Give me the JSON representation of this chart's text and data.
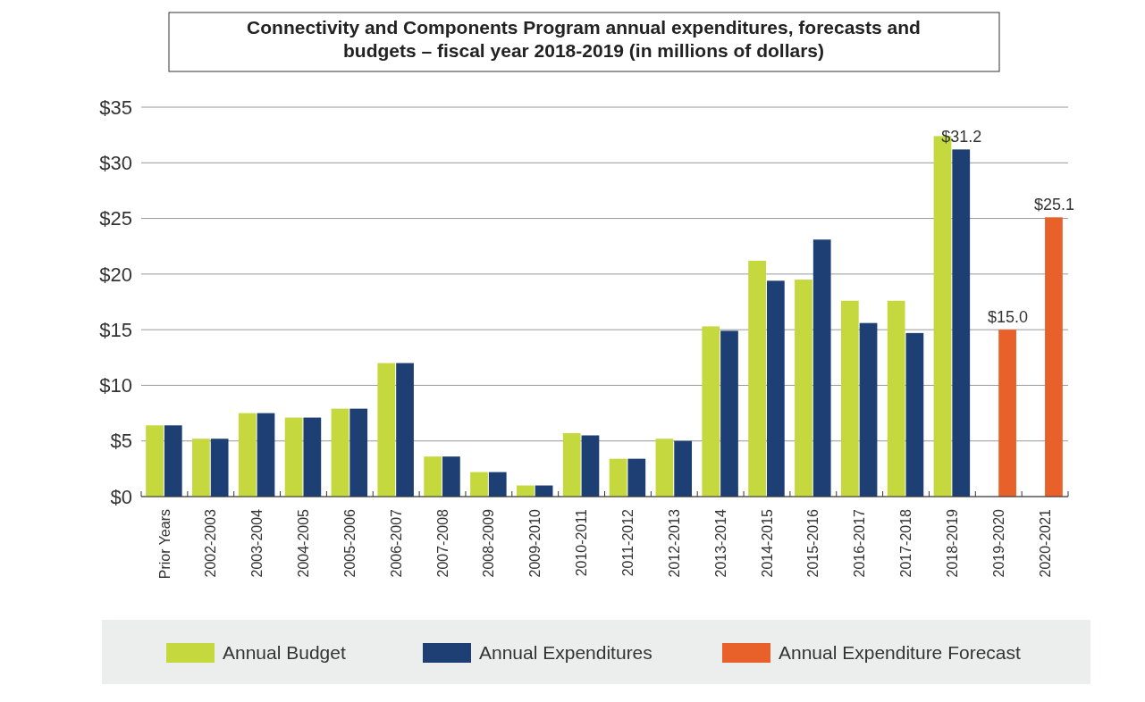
{
  "chart_data": {
    "type": "bar",
    "title": "Connectivity and Components Program annual expenditures, forecasts and budgets – fiscal year 2018-2019 (in millions of dollars)",
    "categories": [
      "Prior Years",
      "2002-2003",
      "2003-2004",
      "2004-2005",
      "2005-2006",
      "2006-2007",
      "2007-2008",
      "2008-2009",
      "2009-2010",
      "2010-2011",
      "2011-2012",
      "2012-2013",
      "2013-2014",
      "2014-2015",
      "2015-2016",
      "2016-2017",
      "2017-2018",
      "2018-2019",
      "2019-2020",
      "2020-2021"
    ],
    "series": [
      {
        "name": "Annual Budget",
        "color": "#c5d83e",
        "values": [
          6.4,
          5.2,
          7.5,
          7.1,
          7.9,
          12.0,
          3.6,
          2.2,
          1.0,
          5.7,
          3.4,
          5.2,
          15.3,
          21.2,
          19.5,
          17.6,
          17.6,
          32.4,
          null,
          null
        ]
      },
      {
        "name": "Annual Expenditures",
        "color": "#1e3f73",
        "values": [
          6.4,
          5.2,
          7.5,
          7.1,
          7.9,
          12.0,
          3.6,
          2.2,
          1.0,
          5.5,
          3.4,
          5.0,
          14.9,
          19.4,
          23.1,
          15.6,
          14.7,
          31.2,
          null,
          null
        ],
        "value_labels": [
          null,
          null,
          null,
          null,
          null,
          null,
          null,
          null,
          null,
          null,
          null,
          null,
          null,
          null,
          null,
          null,
          null,
          "$31.2",
          null,
          null
        ]
      },
      {
        "name": "Annual Expenditure Forecast",
        "color": "#e8602a",
        "values": [
          null,
          null,
          null,
          null,
          null,
          null,
          null,
          null,
          null,
          null,
          null,
          null,
          null,
          null,
          null,
          null,
          null,
          null,
          15.0,
          25.1
        ],
        "value_labels": [
          null,
          null,
          null,
          null,
          null,
          null,
          null,
          null,
          null,
          null,
          null,
          null,
          null,
          null,
          null,
          null,
          null,
          null,
          "$15.0",
          "$25.1"
        ]
      }
    ],
    "ylim": [
      0,
      35
    ],
    "yticks": [
      {
        "value": 0,
        "label": "$0"
      },
      {
        "value": 5,
        "label": "$5"
      },
      {
        "value": 10,
        "label": "$10"
      },
      {
        "value": 15,
        "label": "$15"
      },
      {
        "value": 20,
        "label": "$20"
      },
      {
        "value": 25,
        "label": "$25"
      },
      {
        "value": 30,
        "label": "$30"
      },
      {
        "value": 35,
        "label": "$35"
      }
    ],
    "grid": "y",
    "legend": "bottom"
  }
}
